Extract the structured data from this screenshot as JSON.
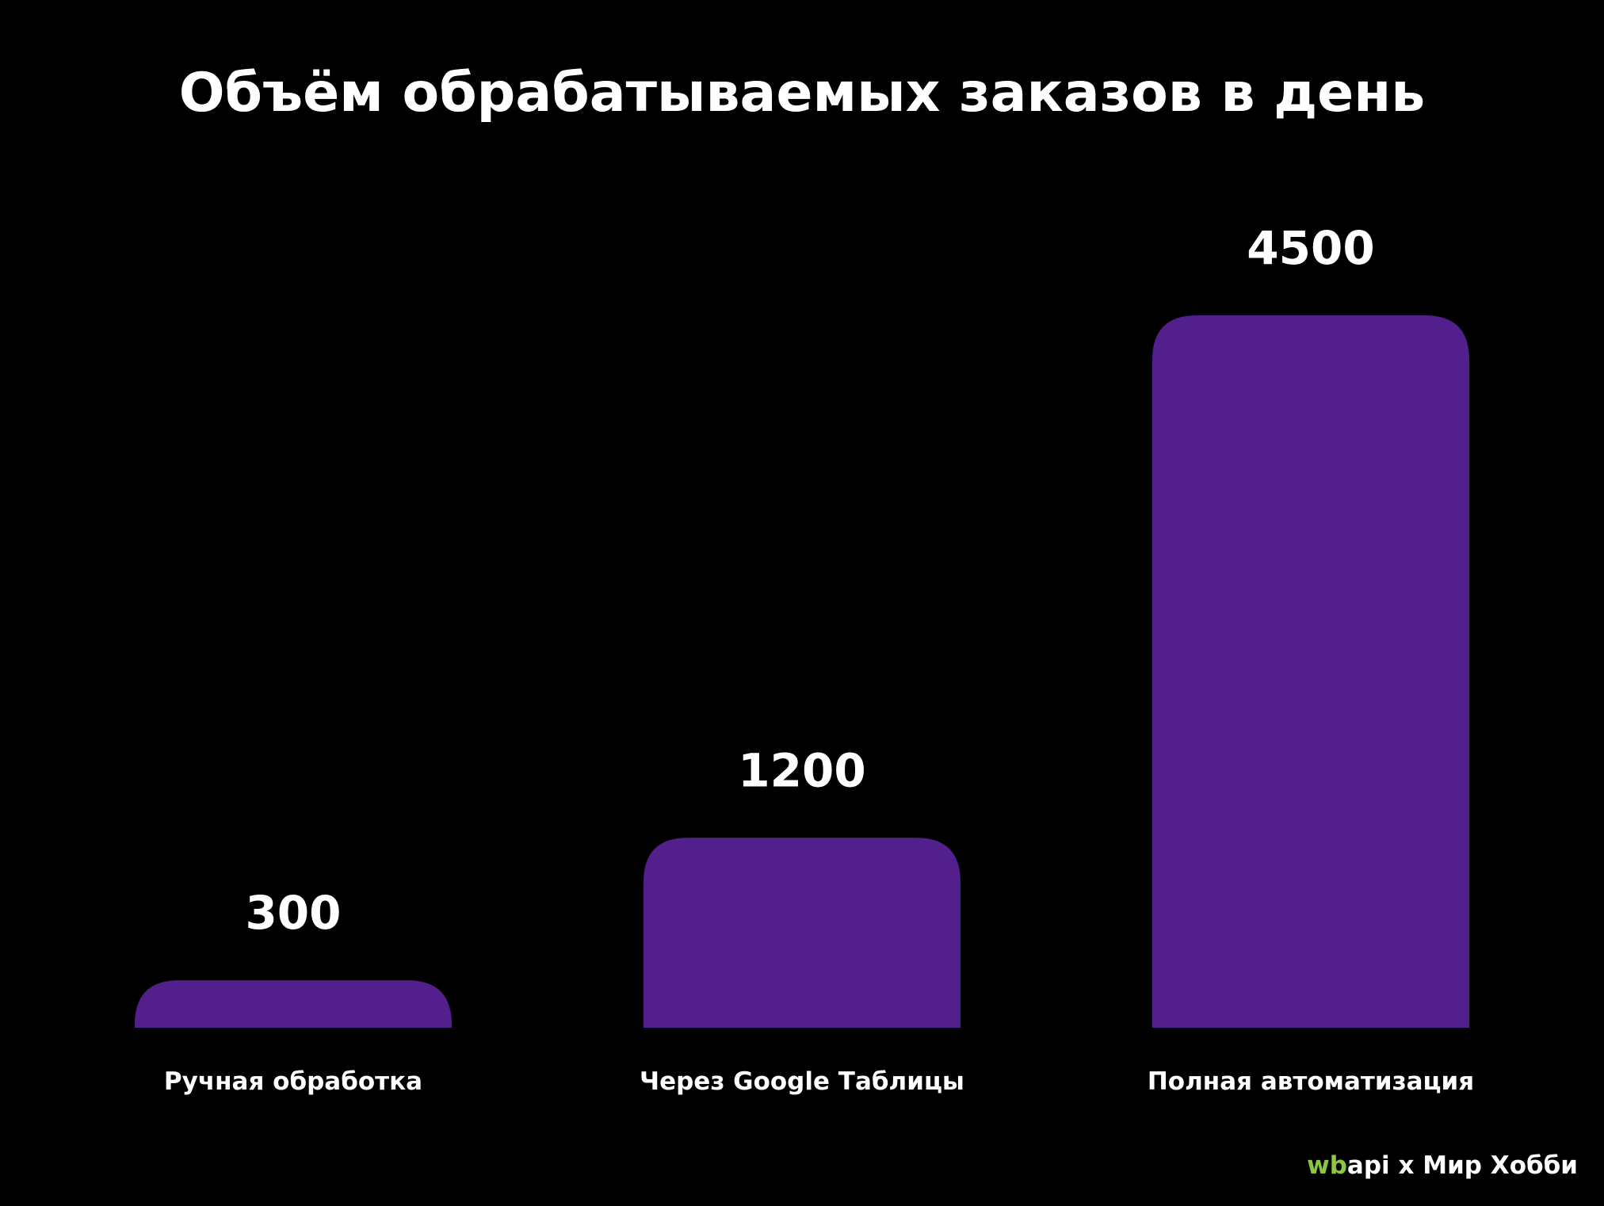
{
  "chart_data": {
    "type": "bar",
    "title": "Объём обрабатываемых заказов в день",
    "xlabel": "",
    "ylabel": "",
    "categories": [
      "Ручная обработка",
      "Через Google Таблицы",
      "Полная автоматизация"
    ],
    "values": [
      300,
      1200,
      4500
    ],
    "value_labels": [
      "300",
      "1200",
      "4500"
    ],
    "ylim": [
      0,
      4500
    ],
    "grid": false,
    "legend": "none",
    "bar_color": "#521f8d"
  },
  "footer": {
    "brand_wb": "wb",
    "brand_api": "api",
    "brand_rest": " x Мир Хобби",
    "brand_wb_color": "#8dc63f"
  }
}
